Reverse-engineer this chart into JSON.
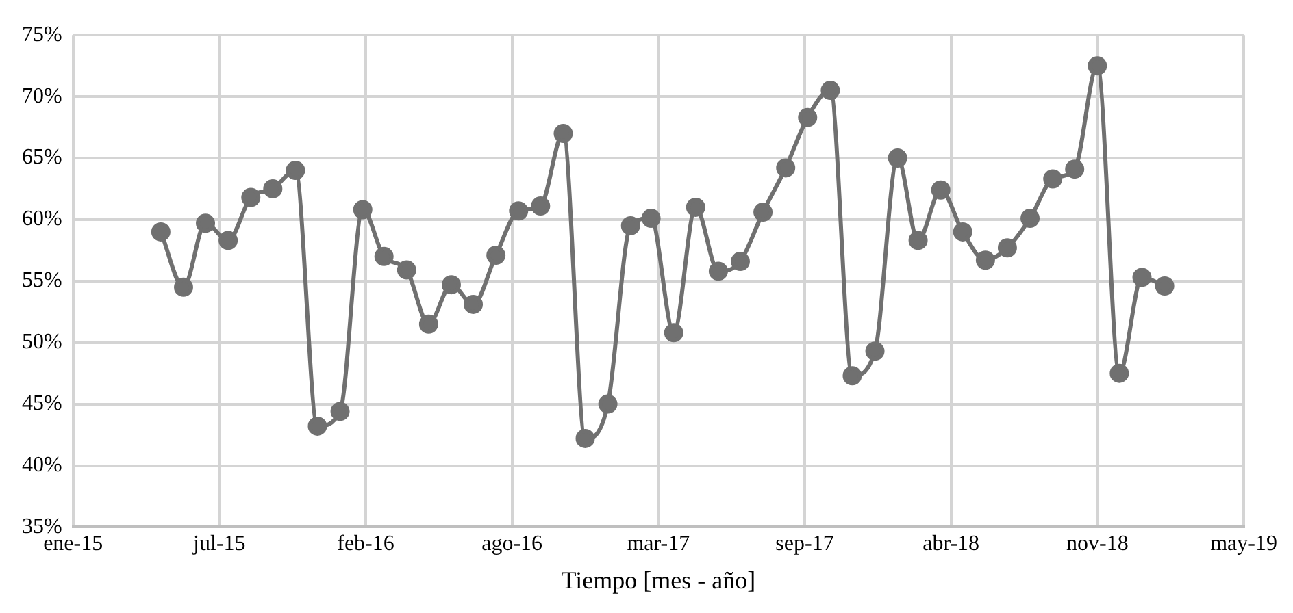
{
  "chart_data": {
    "type": "line",
    "xlabel": "Tiempo [mes - año]",
    "x": [
      "2015-05",
      "2015-06",
      "2015-07",
      "2015-08",
      "2015-09",
      "2015-10",
      "2015-11",
      "2015-12",
      "2016-01",
      "2016-02",
      "2016-03",
      "2016-04",
      "2016-05",
      "2016-06",
      "2016-07",
      "2016-08",
      "2016-09",
      "2016-10",
      "2016-11",
      "2016-12",
      "2017-01",
      "2017-02",
      "2017-03",
      "2017-04",
      "2017-05",
      "2017-06",
      "2017-07",
      "2017-08",
      "2017-09",
      "2017-10",
      "2017-11",
      "2017-12",
      "2018-01",
      "2018-02",
      "2018-03",
      "2018-04",
      "2018-05",
      "2018-06",
      "2018-07",
      "2018-08",
      "2018-09",
      "2018-10",
      "2018-11",
      "2018-12",
      "2019-01",
      "2019-02"
    ],
    "series": [
      {
        "color": "#707070",
        "values": [
          59,
          54.5,
          59.7,
          58.3,
          61.8,
          62.5,
          64,
          43.2,
          44.4,
          60.8,
          57,
          55.9,
          51.5,
          54.7,
          53.1,
          57.1,
          60.7,
          61.1,
          67,
          42.2,
          45,
          59.5,
          60.1,
          50.8,
          61,
          55.8,
          56.6,
          60.6,
          64.2,
          68.3,
          70.5,
          47.3,
          49.3,
          65,
          58.3,
          62.4,
          59,
          56.7,
          57.7,
          60.1,
          63.3,
          64.1,
          72.5,
          47.5,
          55.3,
          54.6
        ]
      }
    ],
    "xlim": [
      "2015-01-01",
      "2019-05-20"
    ],
    "xticks": [
      {
        "value": "2015-01-01",
        "label": "ene-15"
      },
      {
        "value": "2015-07-20",
        "label": "jul-15"
      },
      {
        "value": "2016-02-05",
        "label": "feb-16"
      },
      {
        "value": "2016-08-23",
        "label": "ago-16"
      },
      {
        "value": "2017-03-11",
        "label": "mar-17"
      },
      {
        "value": "2017-09-27",
        "label": "sep-17"
      },
      {
        "value": "2018-04-15",
        "label": "abr-18"
      },
      {
        "value": "2018-11-01",
        "label": "nov-18"
      },
      {
        "value": "2019-05-20",
        "label": "may-19"
      }
    ],
    "ylim": [
      35,
      75
    ],
    "yticks": [
      {
        "value": 35,
        "label": "35%"
      },
      {
        "value": 40,
        "label": "40%"
      },
      {
        "value": 45,
        "label": "45%"
      },
      {
        "value": 50,
        "label": "50%"
      },
      {
        "value": 55,
        "label": "55%"
      },
      {
        "value": 60,
        "label": "60%"
      },
      {
        "value": 65,
        "label": "65%"
      },
      {
        "value": 70,
        "label": "70%"
      },
      {
        "value": 75,
        "label": "75%"
      }
    ],
    "grid": true,
    "marker": "circle",
    "line_style": "solid",
    "legend": false
  }
}
